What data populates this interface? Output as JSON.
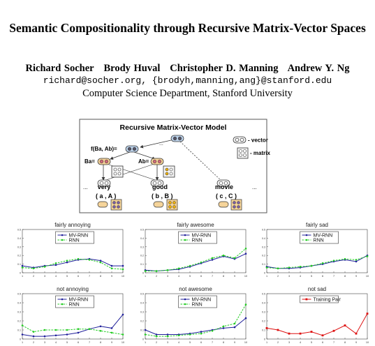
{
  "paper": {
    "title": "Semantic Compositionality through Recursive Matrix-Vector Spaces",
    "authors": [
      "Richard Socher",
      "Brody Huval",
      "Christopher D. Manning",
      "Andrew Y. Ng"
    ],
    "emails": "richard@socher.org, {brodyh,manning,ang}@stanford.edu",
    "affiliation": "Computer Science Department, Stanford University"
  },
  "diagram": {
    "title": "Recursive Matrix-Vector Model",
    "legend_vector": "- vector",
    "legend_matrix": "- matrix",
    "node_top": "f(Ba, Ab)=",
    "node_ba": "Ba=",
    "node_ab": "Ab=",
    "ellipsis": "...",
    "words": [
      {
        "word": "very",
        "pair": "( a , A )"
      },
      {
        "word": "good",
        "pair": "( b , B )"
      },
      {
        "word": "movie",
        "pair": "( c , C )"
      }
    ]
  },
  "chart_data": [
    {
      "type": "line",
      "title": "fairly annoying",
      "x": [
        1,
        2,
        3,
        4,
        5,
        6,
        7,
        8,
        9,
        10
      ],
      "ylim": [
        0,
        0.5
      ],
      "yticks": [
        "0",
        "0.1",
        "0.2",
        "0.3",
        "0.4",
        "0.5"
      ],
      "xticks": [
        "1",
        "2",
        "3",
        "4",
        "5",
        "6",
        "7",
        "8",
        "9",
        "10"
      ],
      "series": [
        {
          "name": "MV-RNN",
          "color": "#1f1f9a",
          "style": "solid",
          "values": [
            0.08,
            0.06,
            0.08,
            0.09,
            0.12,
            0.15,
            0.16,
            0.14,
            0.08,
            0.08
          ]
        },
        {
          "name": "RNN",
          "color": "#22cc22",
          "style": "dashed",
          "values": [
            0.06,
            0.05,
            0.07,
            0.11,
            0.14,
            0.16,
            0.15,
            0.12,
            0.05,
            0.04
          ]
        }
      ]
    },
    {
      "type": "line",
      "title": "fairly awesome",
      "x": [
        1,
        2,
        3,
        4,
        5,
        6,
        7,
        8,
        9,
        10
      ],
      "ylim": [
        0,
        0.5
      ],
      "yticks": [
        "0",
        "0.1",
        "0.2",
        "0.3",
        "0.4",
        "0.5"
      ],
      "xticks": [
        "1",
        "2",
        "3",
        "4",
        "5",
        "6",
        "7",
        "8",
        "9",
        "10"
      ],
      "series": [
        {
          "name": "MV-RNN",
          "color": "#1f1f9a",
          "style": "solid",
          "values": [
            0.03,
            0.02,
            0.03,
            0.04,
            0.07,
            0.11,
            0.15,
            0.19,
            0.16,
            0.22
          ]
        },
        {
          "name": "RNN",
          "color": "#22cc22",
          "style": "dashed",
          "values": [
            0.02,
            0.02,
            0.03,
            0.05,
            0.08,
            0.12,
            0.17,
            0.2,
            0.17,
            0.28
          ]
        }
      ]
    },
    {
      "type": "line",
      "title": "fairly sad",
      "x": [
        1,
        2,
        3,
        4,
        5,
        6,
        7,
        8,
        9,
        10
      ],
      "ylim": [
        0,
        0.5
      ],
      "yticks": [
        "0",
        "0.1",
        "0.2",
        "0.3",
        "0.4",
        "0.5"
      ],
      "xticks": [
        "1",
        "2",
        "3",
        "4",
        "5",
        "6",
        "7",
        "8",
        "9",
        "10"
      ],
      "series": [
        {
          "name": "MV-RNN",
          "color": "#1f1f9a",
          "style": "solid",
          "values": [
            0.07,
            0.05,
            0.05,
            0.06,
            0.08,
            0.1,
            0.13,
            0.15,
            0.13,
            0.2
          ]
        },
        {
          "name": "RNN",
          "color": "#22cc22",
          "style": "dashed",
          "values": [
            0.06,
            0.05,
            0.06,
            0.07,
            0.08,
            0.11,
            0.14,
            0.16,
            0.15,
            0.19
          ]
        }
      ]
    },
    {
      "type": "line",
      "title": "not annoying",
      "x": [
        1,
        2,
        3,
        4,
        5,
        6,
        7,
        8,
        9,
        10
      ],
      "ylim": [
        0,
        0.5
      ],
      "yticks": [
        "0",
        "0.1",
        "0.2",
        "0.3",
        "0.4",
        "0.5"
      ],
      "xticks": [
        "1",
        "2",
        "3",
        "4",
        "5",
        "6",
        "7",
        "8",
        "9",
        "10"
      ],
      "series": [
        {
          "name": "MV-RNN",
          "color": "#1f1f9a",
          "style": "solid",
          "values": [
            0.05,
            0.03,
            0.03,
            0.04,
            0.05,
            0.07,
            0.11,
            0.14,
            0.12,
            0.27
          ]
        },
        {
          "name": "RNN",
          "color": "#22cc22",
          "style": "dashed",
          "values": [
            0.15,
            0.08,
            0.1,
            0.1,
            0.1,
            0.11,
            0.11,
            0.09,
            0.07,
            0.05
          ]
        }
      ]
    },
    {
      "type": "line",
      "title": "not awesome",
      "x": [
        1,
        2,
        3,
        4,
        5,
        6,
        7,
        8,
        9,
        10
      ],
      "ylim": [
        0,
        0.5
      ],
      "yticks": [
        "0",
        "0.1",
        "0.2",
        "0.3",
        "0.4",
        "0.5"
      ],
      "xticks": [
        "1",
        "2",
        "3",
        "4",
        "5",
        "6",
        "7",
        "8",
        "9",
        "10"
      ],
      "series": [
        {
          "name": "MV-RNN",
          "color": "#1f1f9a",
          "style": "solid",
          "values": [
            0.1,
            0.05,
            0.05,
            0.05,
            0.06,
            0.08,
            0.1,
            0.12,
            0.13,
            0.23
          ]
        },
        {
          "name": "RNN",
          "color": "#22cc22",
          "style": "dashed",
          "values": [
            0.05,
            0.03,
            0.03,
            0.04,
            0.05,
            0.06,
            0.09,
            0.14,
            0.17,
            0.38
          ]
        }
      ]
    },
    {
      "type": "line",
      "title": "not sad",
      "x": [
        1,
        2,
        3,
        4,
        5,
        6,
        7,
        8,
        9,
        10
      ],
      "ylim": [
        0,
        0.5
      ],
      "yticks": [
        "0",
        "0.1",
        "0.2",
        "0.3",
        "0.4",
        "0.5"
      ],
      "xticks": [
        "1",
        "2",
        "3",
        "4",
        "5",
        "6",
        "7",
        "8",
        "9",
        "10"
      ],
      "series": [
        {
          "name": "Training Pair",
          "color": "#dd1111",
          "style": "solid",
          "values": [
            0.12,
            0.1,
            0.06,
            0.06,
            0.08,
            0.04,
            0.09,
            0.15,
            0.06,
            0.28
          ]
        }
      ]
    }
  ]
}
